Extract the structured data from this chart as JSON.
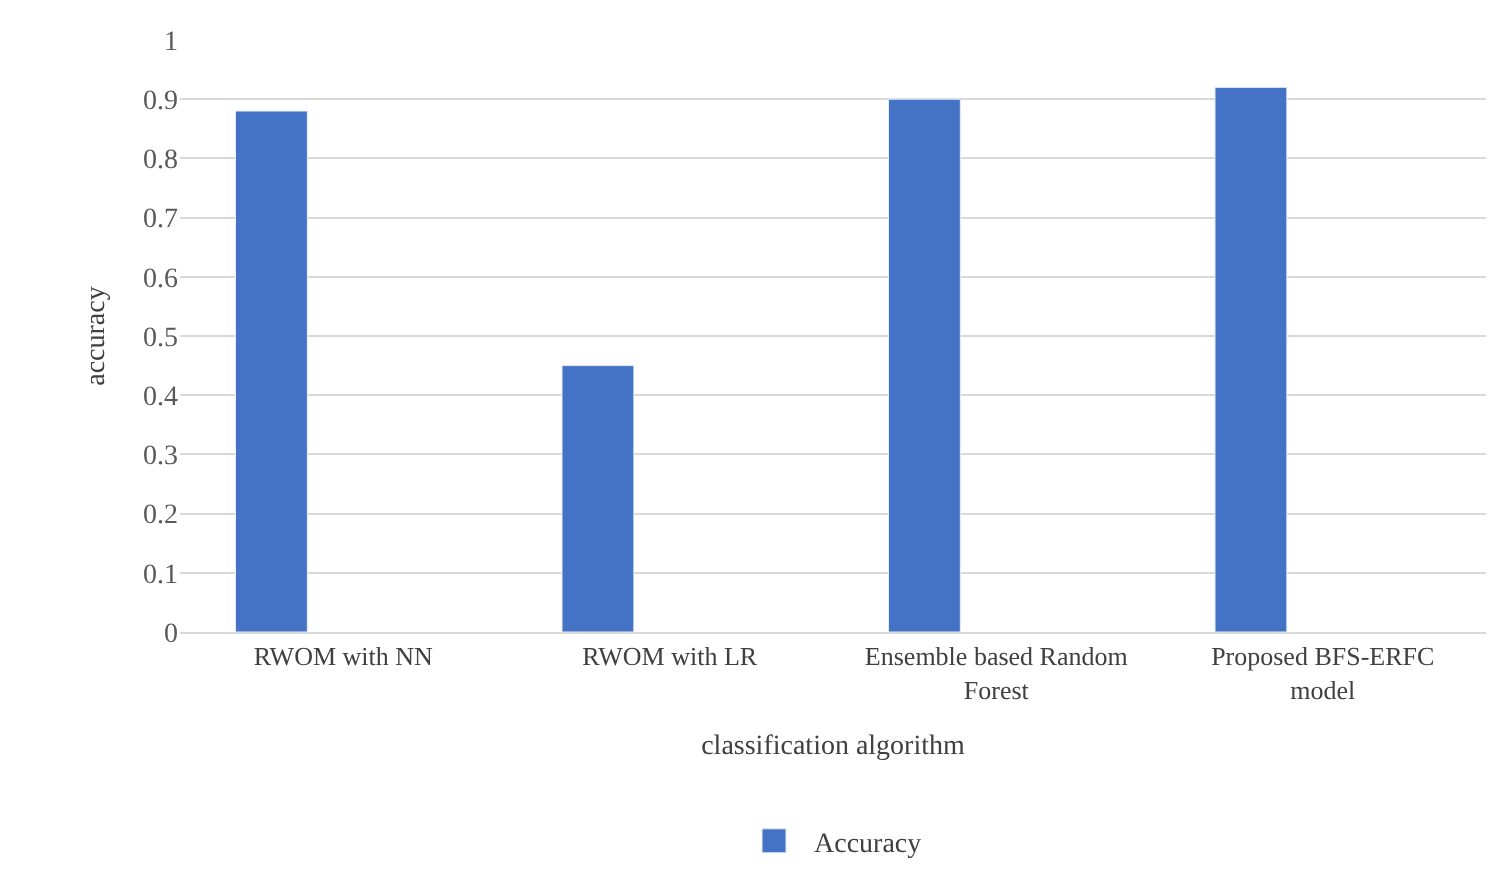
{
  "chart_data": {
    "type": "bar",
    "xlabel": "classification algorithm",
    "ylabel": "accuracy",
    "categories": [
      "RWOM with NN",
      "RWOM with LR",
      "Ensemble based Random Forest",
      "Proposed BFS-ERFC model"
    ],
    "series": [
      {
        "name": "Accuracy",
        "color": "#4472c4",
        "values": [
          0.88,
          0.45,
          0.9,
          0.92
        ]
      }
    ],
    "ylim": [
      0,
      1
    ],
    "yticks": [
      0,
      0.1,
      0.2,
      0.3,
      0.4,
      0.5,
      0.6,
      0.7,
      0.8,
      0.9,
      1
    ],
    "grid": "y",
    "legend": "bottom"
  }
}
